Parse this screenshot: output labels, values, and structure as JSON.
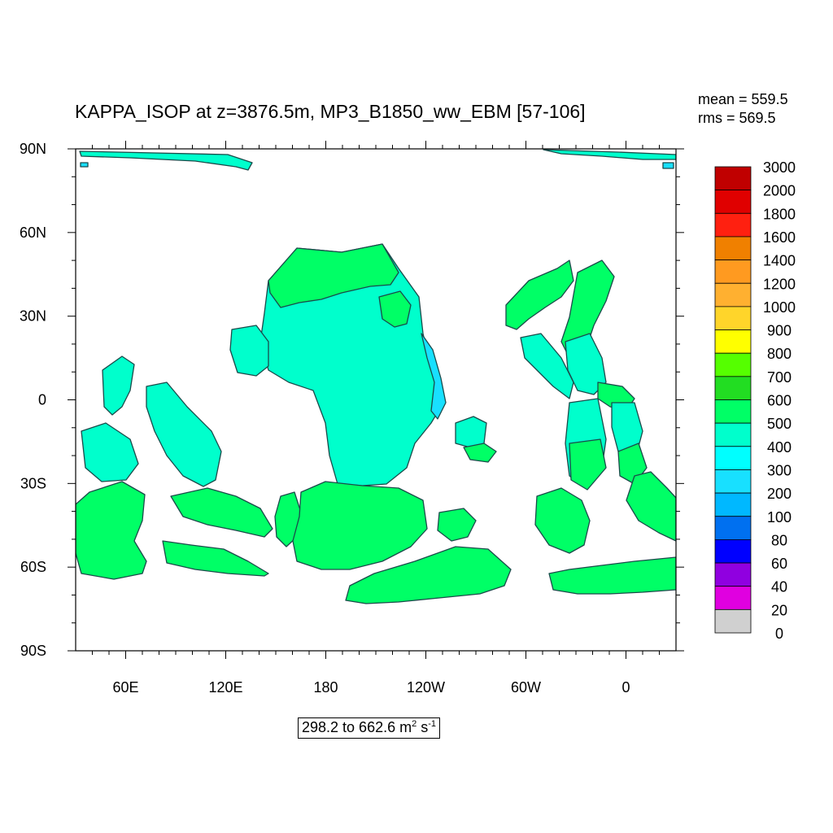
{
  "title": "KAPPA_ISOP at z=3876.5m, MP3_B1850_ww_EBM [57-106]",
  "stats": {
    "mean": "mean = 559.5",
    "rms": "rms = 569.5"
  },
  "range_label": {
    "prefix": "298.2 to 662.6 m",
    "exp1": "2",
    "mid": " s",
    "exp2": "-1"
  },
  "chart_data": {
    "type": "heatmap",
    "title": "KAPPA_ISOP at z=3876.5m, MP3_B1850_ww_EBM [57-106]",
    "projection": "cylindrical equidistant, centered on 150W",
    "lon_range": [
      30,
      390
    ],
    "lat_range": [
      -90,
      90
    ],
    "x_ticks": [
      {
        "lon": 60,
        "label": "60E"
      },
      {
        "lon": 120,
        "label": "120E"
      },
      {
        "lon": 180,
        "label": "180"
      },
      {
        "lon": 240,
        "label": "120W"
      },
      {
        "lon": 300,
        "label": "60W"
      },
      {
        "lon": 360,
        "label": "0"
      }
    ],
    "y_ticks": [
      {
        "lat": 90,
        "label": "90N"
      },
      {
        "lat": 60,
        "label": "60N"
      },
      {
        "lat": 30,
        "label": "30N"
      },
      {
        "lat": 0,
        "label": "0"
      },
      {
        "lat": -30,
        "label": "30S"
      },
      {
        "lat": -60,
        "label": "60S"
      },
      {
        "lat": -90,
        "label": "90S"
      }
    ],
    "colorbar": {
      "labels": [
        "3000",
        "2000",
        "1800",
        "1600",
        "1400",
        "1200",
        "1000",
        "900",
        "800",
        "700",
        "600",
        "500",
        "400",
        "300",
        "200",
        "100",
        "80",
        "60",
        "40",
        "20",
        "0"
      ],
      "colors": [
        "#c00000",
        "#e00000",
        "#ff2010",
        "#f08000",
        "#ff9a20",
        "#ffb030",
        "#ffd52a",
        "#ffff00",
        "#55ff00",
        "#22dd22",
        "#00ff66",
        "#00ffcc",
        "#00ffff",
        "#18e0ff",
        "#00b8ff",
        "#0070f0",
        "#0000ff",
        "#9000e0",
        "#e000e0",
        "#d0d0d0",
        "#707070"
      ]
    },
    "field": {
      "missing": "ocean below depth (white)",
      "dominant_bins": [
        "500-600",
        "600-700"
      ],
      "minor_bins": [
        "300-400",
        "200-300"
      ]
    }
  }
}
